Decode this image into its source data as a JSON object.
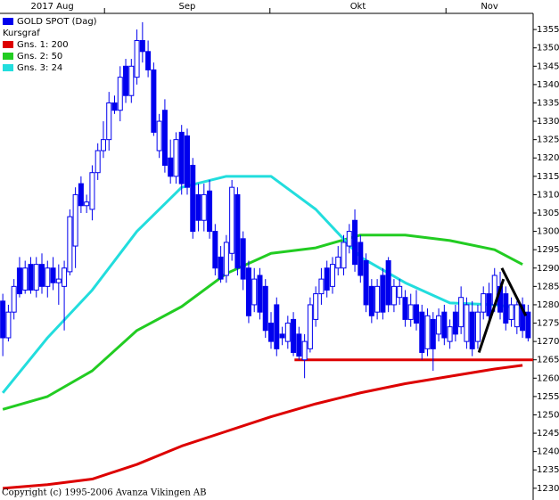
{
  "chart_data": {
    "type": "candlestick",
    "legend_subtitle": "Kursgraf",
    "copyright": "Copyright (c) 1995-2006 Avanza Vikingen AB",
    "xlim": [
      -0.5,
      94.9
    ],
    "xticks": [
      {
        "value": -0.5,
        "label": "2017 Aug"
      },
      {
        "value": 18.2,
        "label": "Sep"
      },
      {
        "value": 47.8,
        "label": "Okt"
      },
      {
        "value": 79.3,
        "label": "Nov"
      }
    ],
    "ylim": [
      1226.8,
      1359.4
    ],
    "yticks": [
      1230,
      1235,
      1240,
      1245,
      1250,
      1255,
      1260,
      1265,
      1270,
      1275,
      1280,
      1285,
      1290,
      1295,
      1300,
      1305,
      1310,
      1315,
      1320,
      1325,
      1330,
      1335,
      1340,
      1345,
      1350,
      1355
    ],
    "series": [
      {
        "name": "GOLD SPOT (Dag)",
        "color": "#0000ee",
        "type": "candlestick",
        "open": [
          1281,
          1271,
          1278,
          1290,
          1284,
          1291,
          1284,
          1291,
          1285,
          1290,
          1286,
          1285,
          1289,
          1296,
          1313,
          1307,
          1306,
          1316,
          1322,
          1325,
          1335,
          1333,
          1345,
          1337,
          1342,
          1352,
          1349,
          1344,
          1322,
          1333,
          1320,
          1315,
          1327,
          1326,
          1318,
          1310,
          1303,
          1311,
          1300,
          1293,
          1288,
          1294,
          1310,
          1298,
          1290,
          1280,
          1288,
          1285,
          1275,
          1280,
          1272,
          1270,
          1276,
          1272,
          1265,
          1268,
          1276,
          1283,
          1290,
          1285,
          1290,
          1290,
          1296,
          1303,
          1297,
          1292,
          1285,
          1278,
          1288,
          1292,
          1280,
          1282,
          1282,
          1276,
          1280,
          1278,
          1268,
          1276,
          1272,
          1278,
          1270,
          1278,
          1274,
          1270,
          1278,
          1270,
          1278,
          1283,
          1280,
          1285,
          1283,
          1276,
          1274,
          1280,
          1278
        ],
        "high": [
          1283,
          1280,
          1287,
          1293,
          1292,
          1293,
          1293,
          1294,
          1292,
          1293,
          1291,
          1292,
          1306,
          1312,
          1315,
          1310,
          1318,
          1324,
          1330,
          1338,
          1337,
          1345,
          1347,
          1347,
          1355,
          1357,
          1352,
          1346,
          1332,
          1336,
          1325,
          1327,
          1329,
          1328,
          1320,
          1313,
          1313,
          1314,
          1302,
          1296,
          1299,
          1314,
          1312,
          1300,
          1292,
          1290,
          1290,
          1287,
          1278,
          1282,
          1274,
          1277,
          1278,
          1274,
          1272,
          1282,
          1285,
          1290,
          1292,
          1293,
          1296,
          1299,
          1302,
          1306,
          1299,
          1294,
          1287,
          1287,
          1290,
          1293,
          1287,
          1287,
          1284,
          1283,
          1284,
          1280,
          1279,
          1278,
          1279,
          1280,
          1276,
          1280,
          1285,
          1282,
          1281,
          1280,
          1285,
          1286,
          1290,
          1289,
          1285,
          1282,
          1281,
          1282,
          1280
        ],
        "low": [
          1266,
          1270,
          1276,
          1282,
          1283,
          1283,
          1282,
          1283,
          1282,
          1284,
          1280,
          1273,
          1288,
          1290,
          1305,
          1305,
          1303,
          1314,
          1320,
          1322,
          1332,
          1330,
          1335,
          1335,
          1340,
          1346,
          1342,
          1326,
          1320,
          1316,
          1313,
          1313,
          1310,
          1310,
          1298,
          1300,
          1300,
          1298,
          1288,
          1286,
          1286,
          1292,
          1288,
          1284,
          1275,
          1278,
          1276,
          1271,
          1268,
          1266,
          1269,
          1268,
          1266,
          1265,
          1260,
          1267,
          1274,
          1280,
          1282,
          1283,
          1288,
          1288,
          1294,
          1289,
          1286,
          1278,
          1275,
          1276,
          1276,
          1278,
          1278,
          1280,
          1274,
          1274,
          1273,
          1265,
          1266,
          1262,
          1270,
          1269,
          1268,
          1270,
          1272,
          1268,
          1266,
          1268,
          1276,
          1275,
          1278,
          1276,
          1273,
          1274,
          1272,
          1271,
          1270
        ],
        "close": [
          1271,
          1278,
          1285,
          1283,
          1290,
          1284,
          1291,
          1285,
          1290,
          1286,
          1287,
          1290,
          1304,
          1310,
          1307,
          1308,
          1316,
          1322,
          1325,
          1335,
          1333,
          1342,
          1337,
          1345,
          1352,
          1349,
          1344,
          1327,
          1330,
          1318,
          1315,
          1325,
          1313,
          1312,
          1300,
          1303,
          1310,
          1300,
          1290,
          1287,
          1297,
          1312,
          1290,
          1287,
          1277,
          1287,
          1278,
          1273,
          1270,
          1268,
          1271,
          1275,
          1267,
          1266,
          1270,
          1280,
          1283,
          1287,
          1284,
          1291,
          1293,
          1297,
          1300,
          1291,
          1288,
          1280,
          1277,
          1285,
          1278,
          1280,
          1285,
          1285,
          1276,
          1280,
          1275,
          1267,
          1277,
          1268,
          1277,
          1271,
          1274,
          1272,
          1282,
          1280,
          1268,
          1278,
          1283,
          1277,
          1288,
          1278,
          1275,
          1280,
          1280,
          1273,
          1271
        ]
      },
      {
        "name": "Gns. 1: 200",
        "color": "#dd0000",
        "type": "line",
        "x": [
          0,
          8,
          16,
          24,
          32,
          40,
          48,
          56,
          64,
          72,
          80,
          88,
          93
        ],
        "values": [
          1230,
          1231,
          1232.5,
          1236.5,
          1241.5,
          1245.5,
          1249.5,
          1253,
          1256,
          1258.5,
          1260.5,
          1262.5,
          1263.5
        ]
      },
      {
        "name": "Gns. 2: 50",
        "color": "#22cc22",
        "type": "line",
        "x": [
          0,
          8,
          16,
          24,
          32,
          40,
          48,
          56,
          64,
          72,
          80,
          88,
          93
        ],
        "values": [
          1251.5,
          1255,
          1262,
          1273,
          1279.5,
          1288.5,
          1294,
          1295.5,
          1299,
          1299,
          1297.5,
          1295,
          1291
        ]
      },
      {
        "name": "Gns. 3: 24",
        "color": "#22dddd",
        "type": "line",
        "x": [
          0,
          8,
          16,
          24,
          32,
          40,
          48,
          56,
          64,
          72,
          80,
          88,
          93
        ],
        "values": [
          1256,
          1271,
          1284,
          1300,
          1312,
          1315,
          1315,
          1306,
          1293,
          1286,
          1280.5,
          1280,
          1279
        ]
      }
    ],
    "hlines": [
      {
        "value": 1265,
        "from": 52.2,
        "color": "#dd0000"
      }
    ],
    "trendlines": [
      {
        "x": [
          85.2,
          89.6
        ],
        "y": [
          1267,
          1287
        ],
        "color": "#000000"
      },
      {
        "x": [
          89.3,
          93.6
        ],
        "y": [
          1290,
          1277
        ],
        "color": "#000000"
      }
    ]
  }
}
